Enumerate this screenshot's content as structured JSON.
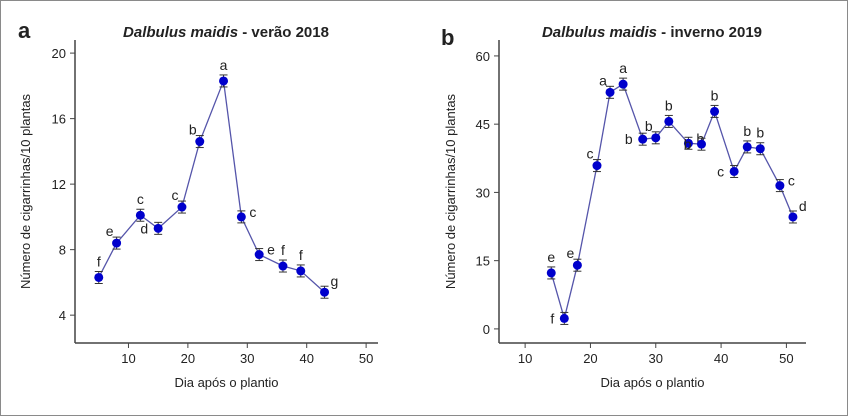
{
  "chart_data": [
    {
      "type": "line",
      "panel_label": "a",
      "title_species": "Dalbulus maidis",
      "title_rest": " - verão 2018",
      "xlabel": "Dia após o plantio",
      "ylabel": "Número de cigarrinhas/10 plantas",
      "xlim": [
        1,
        52
      ],
      "ylim": [
        2.3,
        20.8
      ],
      "xticks": [
        10,
        20,
        30,
        40,
        50
      ],
      "yticks": [
        4,
        8,
        12,
        16,
        20
      ],
      "grid": false,
      "color": "#0000cc",
      "line_color": "#5555aa",
      "x": [
        5,
        8,
        12,
        15,
        19,
        22,
        26,
        29,
        32,
        36,
        39,
        43
      ],
      "y": [
        6.3,
        8.4,
        10.1,
        9.3,
        10.6,
        14.6,
        18.3,
        10.0,
        7.7,
        7.0,
        6.7,
        5.4
      ],
      "letters": [
        "f",
        "e",
        "c",
        "d",
        "c",
        "b",
        "a",
        "c",
        "e",
        "f",
        "f",
        "g"
      ]
    },
    {
      "type": "line",
      "panel_label": "b",
      "title_species": "Dalbulus maidis",
      "title_rest": " - inverno 2019",
      "xlabel": "Dia após o plantio",
      "ylabel": "Número de cigarrinhas/10 plantas",
      "xlim": [
        6,
        53
      ],
      "ylim": [
        -3.1,
        63.5
      ],
      "xticks": [
        10,
        20,
        30,
        40,
        50
      ],
      "yticks": [
        0,
        15,
        30,
        45,
        60
      ],
      "grid": false,
      "color": "#0000cc",
      "line_color": "#5555aa",
      "x": [
        14,
        16,
        18,
        21,
        23,
        25,
        28,
        30,
        32,
        35,
        37,
        39,
        42,
        44,
        46,
        49,
        51
      ],
      "y": [
        12.3,
        2.3,
        14.0,
        35.9,
        52.0,
        53.8,
        41.7,
        42.0,
        45.6,
        40.8,
        40.6,
        47.8,
        34.6,
        40.0,
        39.6,
        31.5,
        24.6
      ],
      "letters": [
        "e",
        "f",
        "e",
        "c",
        "a",
        "a",
        "b",
        "b",
        "b",
        "b",
        "b",
        "b",
        "c",
        "b",
        "b",
        "c",
        "d"
      ]
    }
  ]
}
